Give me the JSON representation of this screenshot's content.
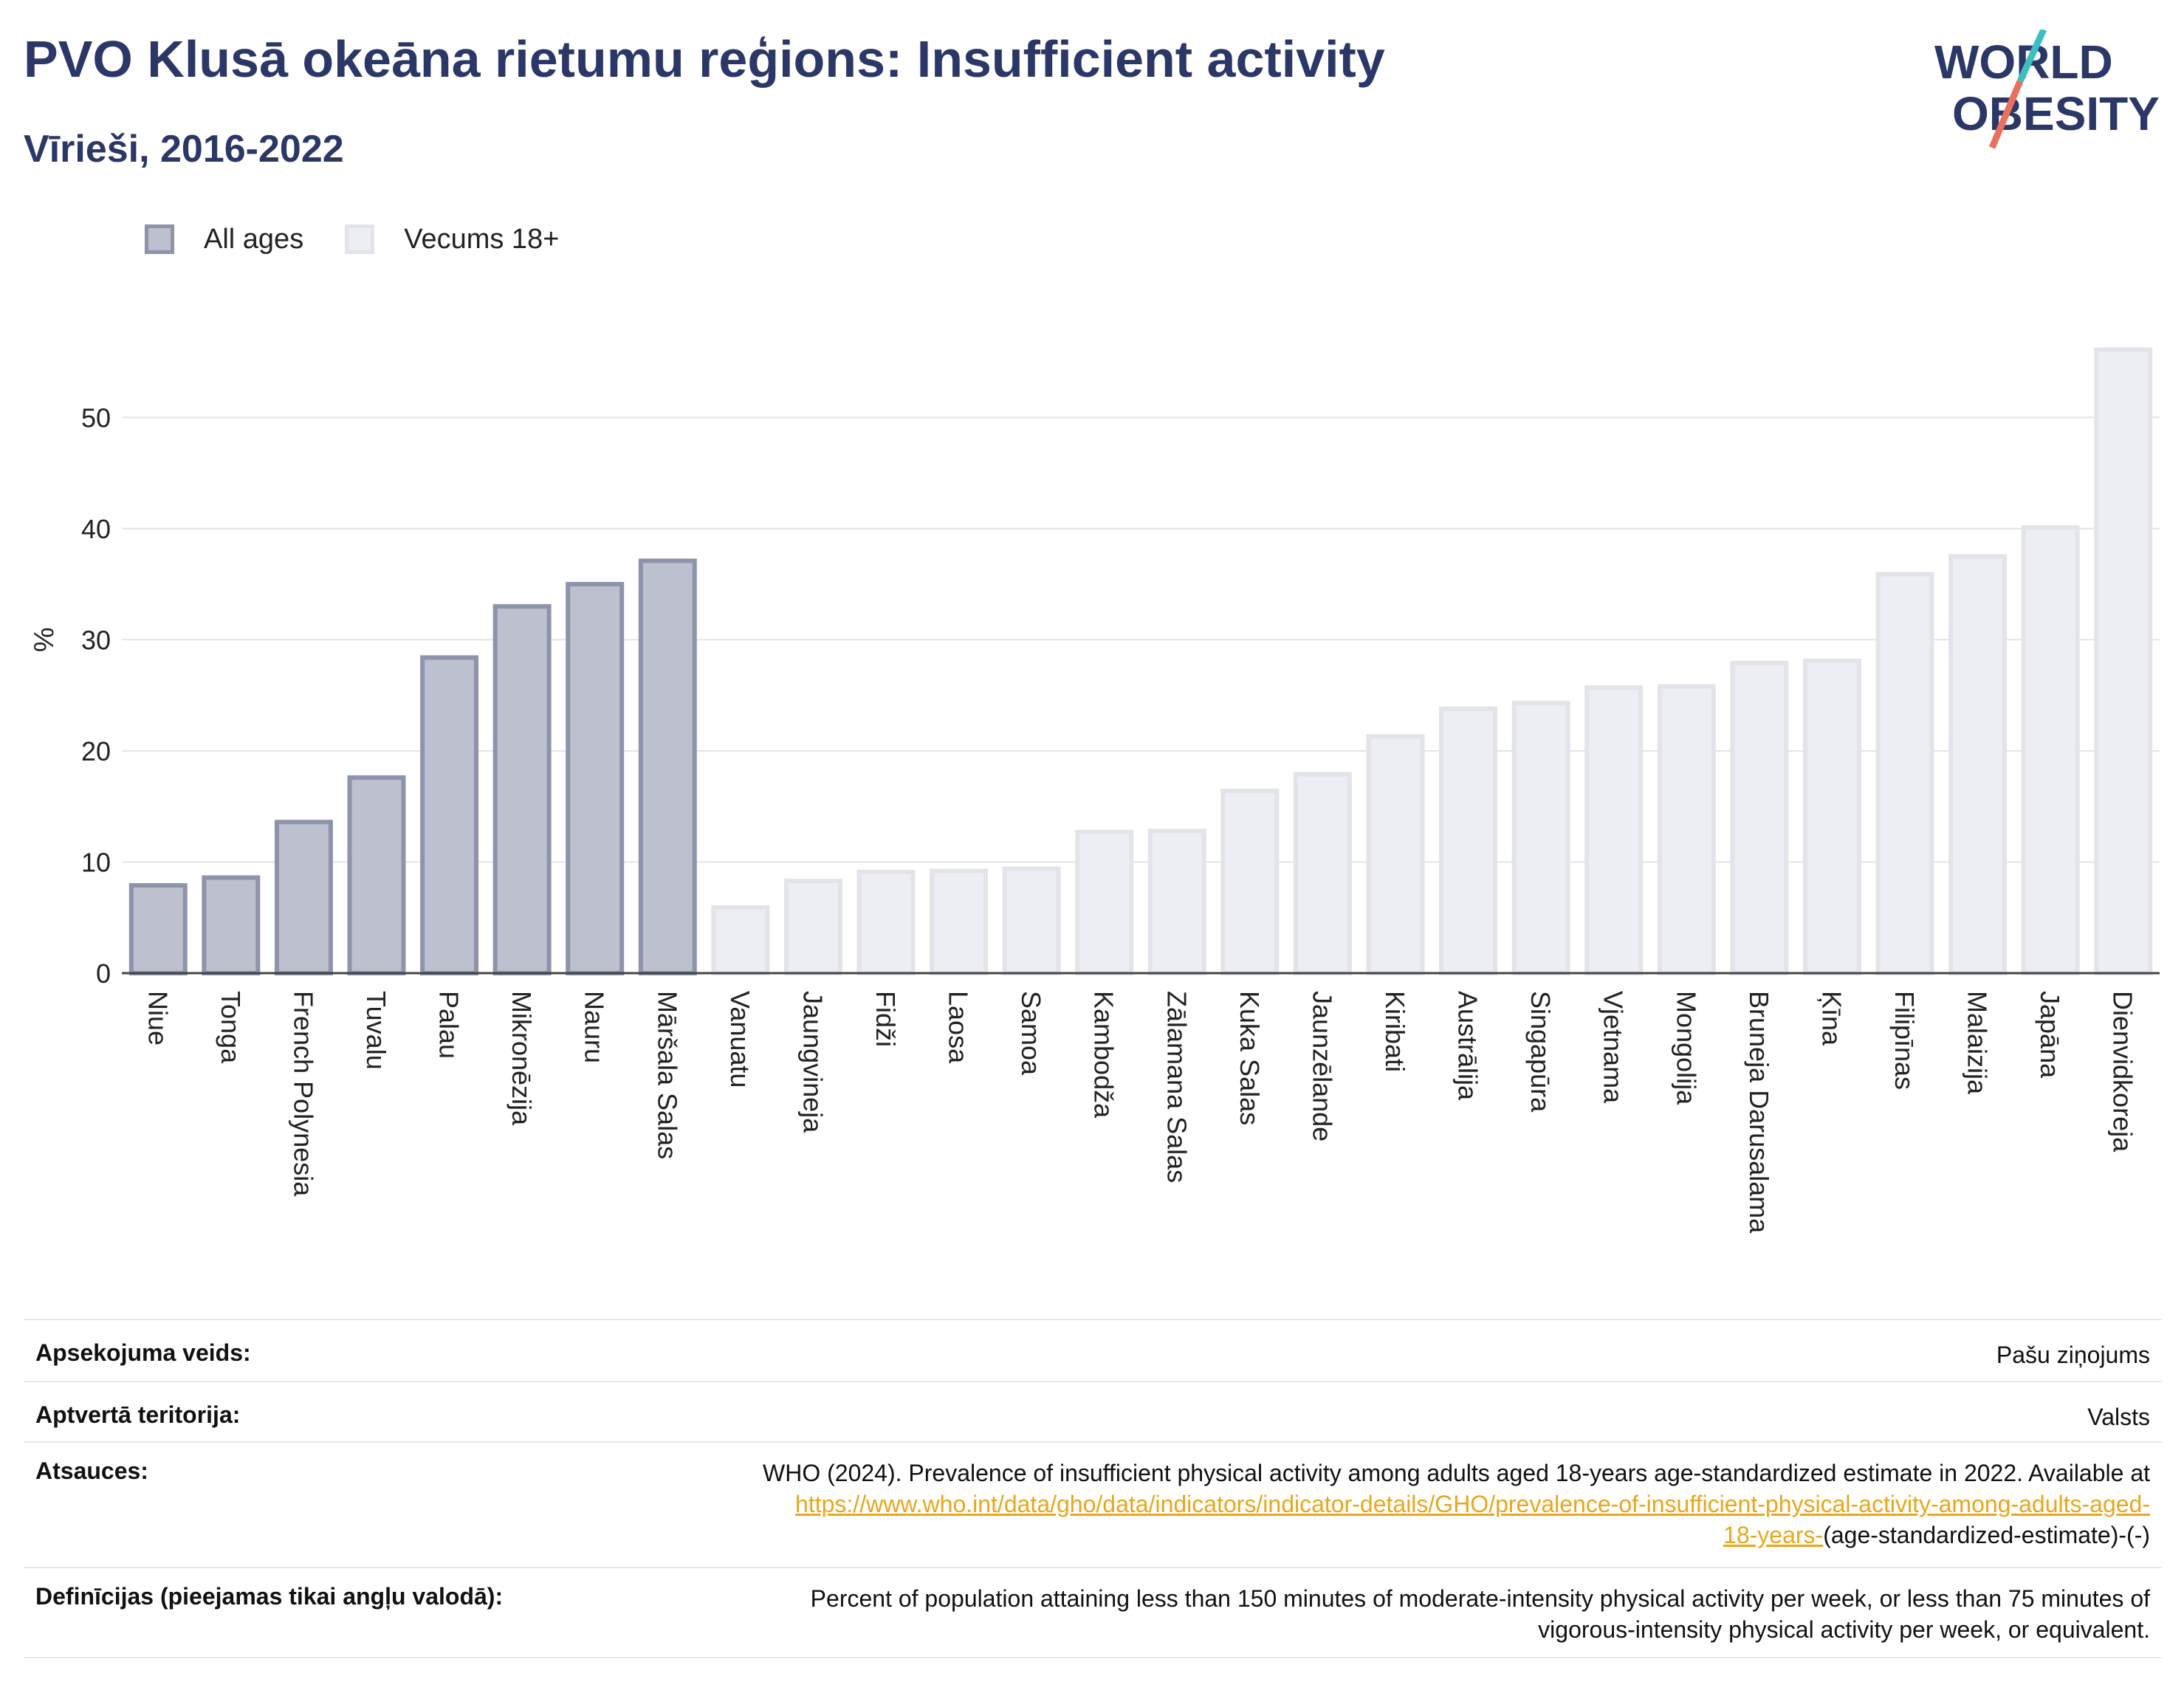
{
  "header": {
    "title": "PVO Klusā okeāna rietumu reģions: Insufficient activity",
    "subtitle": "Vīrieši, 2016-2022"
  },
  "logo": {
    "line1": "WORLD",
    "line2": "OBESITY",
    "accent_teal": "#3dbfc1",
    "accent_coral": "#e8705f"
  },
  "legend": {
    "all_ages": "All ages",
    "adult": "Vecums 18+"
  },
  "colors": {
    "all_ages_fill": "#bcc0cf",
    "all_ages_stroke": "#8d93aa",
    "adult_fill": "#eceef3",
    "adult_stroke": "#e2e4ea",
    "title": "#2b3766"
  },
  "chart_data": {
    "type": "bar",
    "ylabel": "%",
    "ylim": [
      0,
      57
    ],
    "yticks": [
      0,
      10,
      20,
      30,
      40,
      50
    ],
    "grid": true,
    "legend_position": "top-left",
    "categories": [
      "Niue",
      "Tonga",
      "French Polynesia",
      "Tuvalu",
      "Palau",
      "Mikronēzija",
      "Nauru",
      "Māršala Salas",
      "Vanuatu",
      "Jaungvineja",
      "Fidži",
      "Laosa",
      "Samoa",
      "Kambodža",
      "Zālamana Salas",
      "Kuka Salas",
      "Jaunzēlande",
      "Kiribati",
      "Austrālija",
      "Singapūra",
      "Vjetnama",
      "Mongolija",
      "Bruneja Darusalama",
      "Ķīna",
      "Filipīnas",
      "Malaizija",
      "Japāna",
      "Dienvidkoreja"
    ],
    "values": [
      7.9,
      8.6,
      13.6,
      17.6,
      28.4,
      33.0,
      35.0,
      37.1,
      5.9,
      8.3,
      9.1,
      9.2,
      9.4,
      12.7,
      12.8,
      16.4,
      17.9,
      21.3,
      23.8,
      24.3,
      25.7,
      25.8,
      27.9,
      28.1,
      35.9,
      37.5,
      40.1,
      56.1
    ],
    "groups": [
      "All ages",
      "All ages",
      "All ages",
      "All ages",
      "All ages",
      "All ages",
      "All ages",
      "All ages",
      "Vecums 18+",
      "Vecums 18+",
      "Vecums 18+",
      "Vecums 18+",
      "Vecums 18+",
      "Vecums 18+",
      "Vecums 18+",
      "Vecums 18+",
      "Vecums 18+",
      "Vecums 18+",
      "Vecums 18+",
      "Vecums 18+",
      "Vecums 18+",
      "Vecums 18+",
      "Vecums 18+",
      "Vecums 18+",
      "Vecums 18+",
      "Vecums 18+",
      "Vecums 18+",
      "Vecums 18+"
    ]
  },
  "info": {
    "survey_label": "Apsekojuma veids:",
    "survey_value": "Pašu ziņojums",
    "coverage_label": "Aptvertā teritorija:",
    "coverage_value": "Valsts",
    "refs_label": "Atsauces:",
    "refs_text": "WHO (2024). Prevalence of insufficient physical activity among adults aged 18-years age-standardized estimate in 2022. Available at",
    "refs_link_1": "https://www.who.int/data/gho/data/indicators/indicator-details/GHO/prevalence-of-insufficient-physical-activity-among-adults-aged-",
    "refs_link_2": "18-years-",
    "refs_tail": "(age-standardized-estimate)-(-)",
    "defs_label": "Definīcijas (pieejamas tikai angļu valodā):",
    "defs_line_1": "Percent of population attaining less than 150 minutes of moderate-intensity physical activity per week, or less than 75 minutes of",
    "defs_line_2": "vigorous-intensity physical activity per week, or equivalent."
  }
}
